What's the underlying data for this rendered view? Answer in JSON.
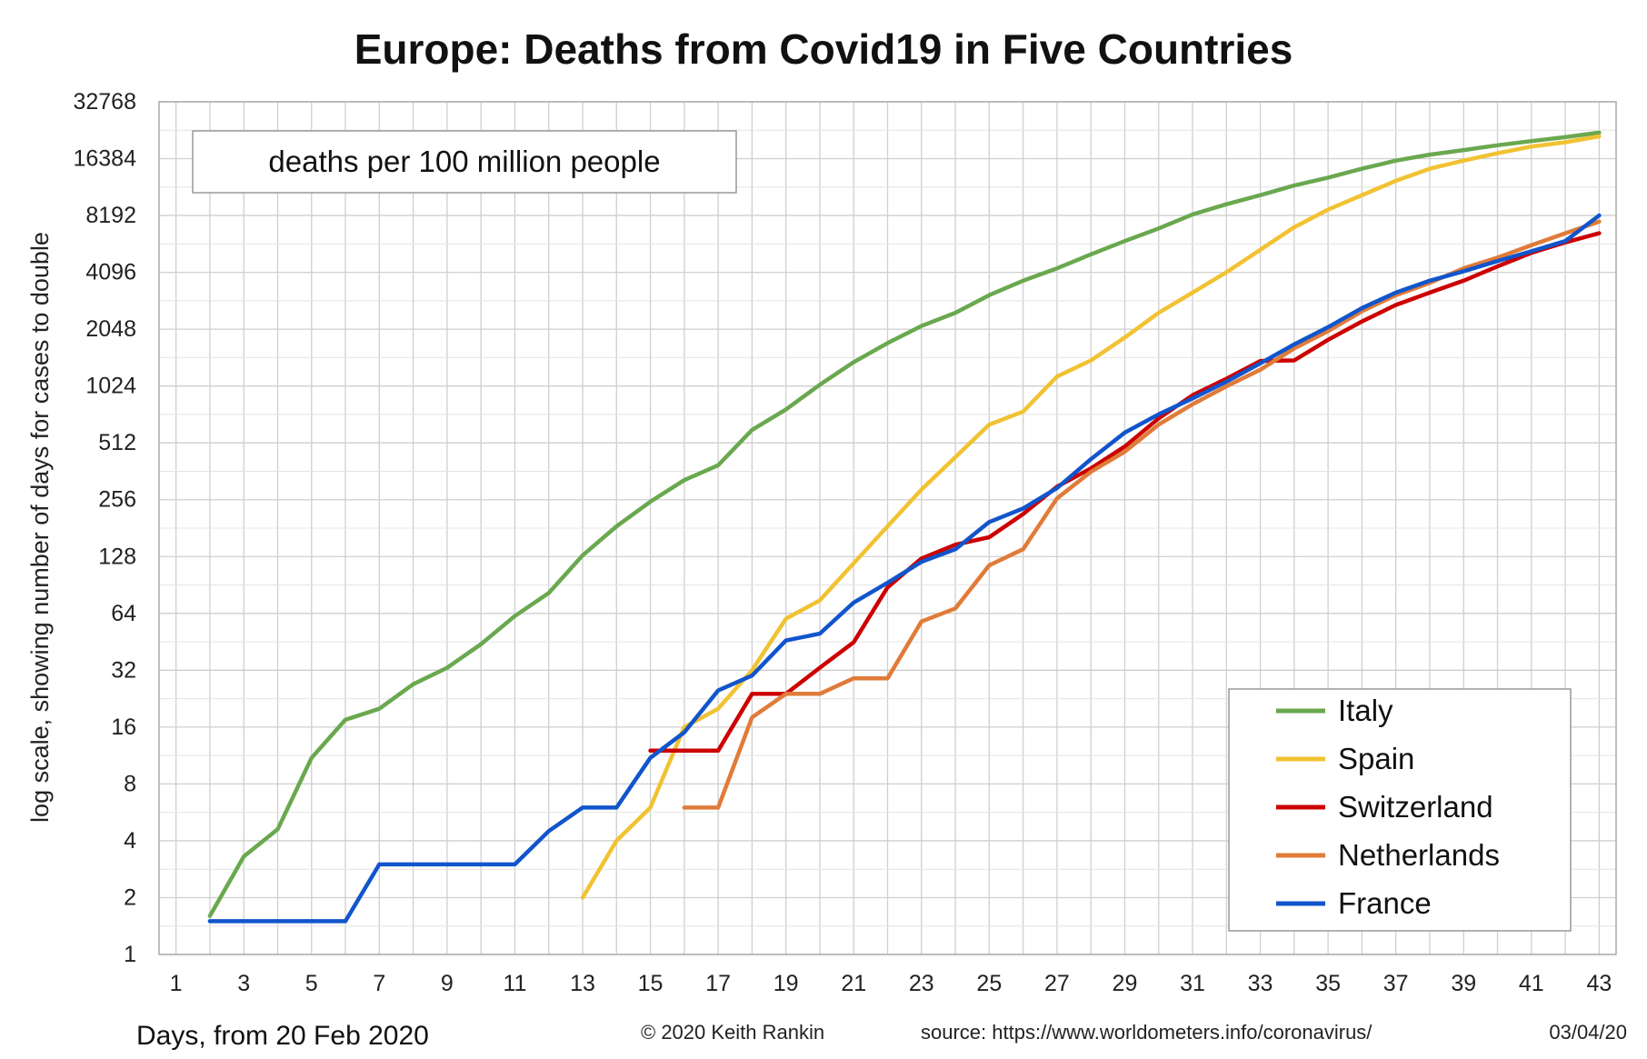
{
  "chart_data": {
    "type": "line",
    "title": "Europe: Deaths from Covid19 in Five Countries",
    "annotation": "deaths per 100 million people",
    "xlabel": "Days, from 20 Feb 2020",
    "ylabel": "log scale, showing number of days for cases to double",
    "y_scale": "log2",
    "ylim": [
      1,
      32768
    ],
    "xlim": [
      0.5,
      43.5
    ],
    "y_ticks": [
      "1",
      "2",
      "4",
      "8",
      "16",
      "32",
      "64",
      "128",
      "256",
      "512",
      "1024",
      "2048",
      "4096",
      "8192",
      "16384",
      "32768"
    ],
    "x_ticks": [
      "1",
      "3",
      "5",
      "7",
      "9",
      "11",
      "13",
      "15",
      "17",
      "19",
      "21",
      "23",
      "25",
      "27",
      "29",
      "31",
      "33",
      "35",
      "37",
      "39",
      "41",
      "43"
    ],
    "grid": true,
    "legend_position": "bottom-right",
    "credit": "© 2020  Keith Rankin",
    "source": "source:  https://www.worldometers.info/coronavirus/",
    "date": "03/04/20",
    "series": [
      {
        "name": "Italy",
        "color": "#6aa84f",
        "points": [
          [
            2,
            1.6
          ],
          [
            3,
            3.3
          ],
          [
            4,
            4.6
          ],
          [
            5,
            11
          ],
          [
            6,
            17.5
          ],
          [
            7,
            20
          ],
          [
            8,
            27
          ],
          [
            9,
            33
          ],
          [
            10,
            44
          ],
          [
            11,
            62
          ],
          [
            12,
            82
          ],
          [
            13,
            130
          ],
          [
            14,
            185
          ],
          [
            15,
            250
          ],
          [
            16,
            325
          ],
          [
            17,
            390
          ],
          [
            18,
            600
          ],
          [
            19,
            770
          ],
          [
            20,
            1040
          ],
          [
            21,
            1370
          ],
          [
            22,
            1730
          ],
          [
            23,
            2130
          ],
          [
            24,
            2500
          ],
          [
            25,
            3100
          ],
          [
            26,
            3700
          ],
          [
            27,
            4300
          ],
          [
            28,
            5100
          ],
          [
            29,
            6000
          ],
          [
            30,
            7000
          ],
          [
            31,
            8300
          ],
          [
            32,
            9400
          ],
          [
            33,
            10500
          ],
          [
            34,
            11800
          ],
          [
            35,
            13000
          ],
          [
            36,
            14500
          ],
          [
            37,
            16000
          ],
          [
            38,
            17200
          ],
          [
            39,
            18200
          ],
          [
            40,
            19300
          ],
          [
            41,
            20300
          ],
          [
            42,
            21300
          ],
          [
            43,
            22500
          ]
        ]
      },
      {
        "name": "Spain",
        "color": "#f1c232",
        "points": [
          [
            13,
            2
          ],
          [
            14,
            4
          ],
          [
            15,
            6
          ],
          [
            16,
            16
          ],
          [
            17,
            20
          ],
          [
            18,
            32
          ],
          [
            19,
            60
          ],
          [
            20,
            75
          ],
          [
            21,
            118
          ],
          [
            22,
            185
          ],
          [
            23,
            290
          ],
          [
            24,
            430
          ],
          [
            25,
            640
          ],
          [
            26,
            750
          ],
          [
            27,
            1150
          ],
          [
            28,
            1400
          ],
          [
            29,
            1850
          ],
          [
            30,
            2500
          ],
          [
            31,
            3200
          ],
          [
            32,
            4100
          ],
          [
            33,
            5400
          ],
          [
            34,
            7100
          ],
          [
            35,
            8800
          ],
          [
            36,
            10500
          ],
          [
            37,
            12500
          ],
          [
            38,
            14500
          ],
          [
            39,
            16000
          ],
          [
            40,
            17500
          ],
          [
            41,
            19000
          ],
          [
            42,
            20000
          ],
          [
            43,
            21500
          ]
        ]
      },
      {
        "name": "Switzerland",
        "color": "#cc0000",
        "points": [
          [
            15,
            12
          ],
          [
            16,
            12
          ],
          [
            17,
            12
          ],
          [
            18,
            24
          ],
          [
            19,
            24
          ],
          [
            20,
            33
          ],
          [
            21,
            45
          ],
          [
            22,
            88
          ],
          [
            23,
            125
          ],
          [
            24,
            148
          ],
          [
            25,
            162
          ],
          [
            26,
            215
          ],
          [
            27,
            300
          ],
          [
            28,
            375
          ],
          [
            29,
            490
          ],
          [
            30,
            690
          ],
          [
            31,
            915
          ],
          [
            32,
            1120
          ],
          [
            33,
            1390
          ],
          [
            34,
            1400
          ],
          [
            35,
            1800
          ],
          [
            36,
            2250
          ],
          [
            37,
            2750
          ],
          [
            38,
            3200
          ],
          [
            39,
            3700
          ],
          [
            40,
            4400
          ],
          [
            41,
            5200
          ],
          [
            42,
            5900
          ],
          [
            43,
            6600
          ]
        ]
      },
      {
        "name": "Netherlands",
        "color": "#e07b39",
        "points": [
          [
            16,
            6
          ],
          [
            17,
            6
          ],
          [
            18,
            18
          ],
          [
            19,
            24
          ],
          [
            20,
            24
          ],
          [
            21,
            29
          ],
          [
            22,
            29
          ],
          [
            23,
            58
          ],
          [
            24,
            68
          ],
          [
            25,
            115
          ],
          [
            26,
            140
          ],
          [
            27,
            260
          ],
          [
            28,
            360
          ],
          [
            29,
            460
          ],
          [
            30,
            640
          ],
          [
            31,
            820
          ],
          [
            32,
            1020
          ],
          [
            33,
            1250
          ],
          [
            34,
            1620
          ],
          [
            35,
            2000
          ],
          [
            36,
            2550
          ],
          [
            37,
            3100
          ],
          [
            38,
            3600
          ],
          [
            39,
            4300
          ],
          [
            40,
            4900
          ],
          [
            41,
            5700
          ],
          [
            42,
            6600
          ],
          [
            43,
            7600
          ]
        ]
      },
      {
        "name": "France",
        "color": "#1155cc",
        "points": [
          [
            2,
            1.5
          ],
          [
            3,
            1.5
          ],
          [
            4,
            1.5
          ],
          [
            5,
            1.5
          ],
          [
            6,
            1.5
          ],
          [
            7,
            3
          ],
          [
            8,
            3
          ],
          [
            9,
            3
          ],
          [
            10,
            3
          ],
          [
            11,
            3
          ],
          [
            12,
            4.5
          ],
          [
            13,
            6
          ],
          [
            14,
            6
          ],
          [
            15,
            11
          ],
          [
            16,
            15
          ],
          [
            17,
            25
          ],
          [
            18,
            30
          ],
          [
            19,
            46
          ],
          [
            20,
            50
          ],
          [
            21,
            73
          ],
          [
            22,
            93
          ],
          [
            23,
            120
          ],
          [
            24,
            140
          ],
          [
            25,
            195
          ],
          [
            26,
            230
          ],
          [
            27,
            295
          ],
          [
            28,
            420
          ],
          [
            29,
            580
          ],
          [
            30,
            725
          ],
          [
            31,
            880
          ],
          [
            32,
            1080
          ],
          [
            33,
            1350
          ],
          [
            34,
            1700
          ],
          [
            35,
            2100
          ],
          [
            36,
            2650
          ],
          [
            37,
            3200
          ],
          [
            38,
            3700
          ],
          [
            39,
            4150
          ],
          [
            40,
            4700
          ],
          [
            41,
            5300
          ],
          [
            42,
            6000
          ],
          [
            43,
            8200
          ]
        ]
      }
    ]
  }
}
